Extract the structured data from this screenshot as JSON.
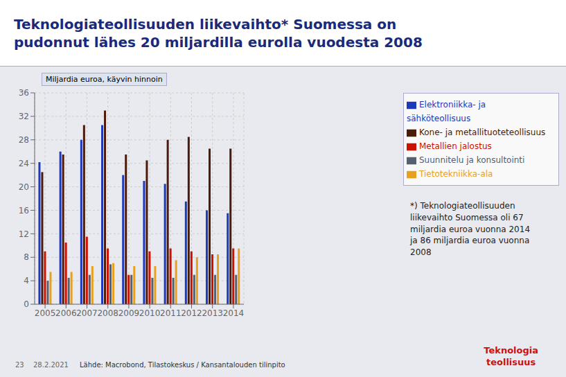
{
  "chart_data": {
    "type": "bar",
    "title": "Teknologiateollisuuden liikevaihto* Suomessa on\npudonnut lähes 20 miljardilla eurolla vuodesta 2008",
    "y_label": "Miljardia euroa, käyvin hinnoin",
    "categories": [
      "2005",
      "2006",
      "2007",
      "2008",
      "2009",
      "2010",
      "2011",
      "2012",
      "2013",
      "2014"
    ],
    "series": [
      {
        "name": "Elektroniikka- ja sähköteollisuus",
        "color": "#1c39bb",
        "values": [
          24.2,
          26.0,
          28.0,
          30.5,
          22.0,
          21.0,
          20.5,
          17.5,
          16.0,
          15.5
        ]
      },
      {
        "name": "Kone- ja metallituoteteollisuus",
        "color": "#4a1a0a",
        "values": [
          22.5,
          25.5,
          30.5,
          33.0,
          25.5,
          24.5,
          28.0,
          28.5,
          26.5,
          26.5
        ]
      },
      {
        "name": "Metallien jalostus",
        "color": "#cc1100",
        "values": [
          9.0,
          10.5,
          11.5,
          9.5,
          5.0,
          9.0,
          9.5,
          9.0,
          8.5,
          9.5
        ]
      },
      {
        "name": "Suunnitelu ja konsultointi",
        "color": "#556070",
        "values": [
          4.0,
          4.5,
          5.0,
          6.8,
          5.0,
          4.5,
          4.5,
          5.0,
          5.0,
          5.0
        ]
      },
      {
        "name": "Tietotekniikka-ala",
        "color": "#e8a020",
        "values": [
          5.5,
          5.5,
          6.5,
          7.0,
          6.5,
          6.5,
          7.5,
          8.0,
          8.5,
          9.5
        ]
      }
    ],
    "ylim": [
      0,
      36
    ],
    "yticks": [
      0,
      4,
      8,
      12,
      16,
      20,
      24,
      28,
      32,
      36
    ],
    "grid": true,
    "legend": "right",
    "annotations": [
      "*) Teknologiateollisuuden\nliikevaihto Suomessa oli 67\nmiljardia euroa vuonna 2014\nja 86 miljardia euroa vuonna\n2008",
      "Lähde: Macrobond, Tilastokeskus / Kansantalouden tilinpito",
      "23",
      "28.2.2021",
      "Teknologia\nteollisuus"
    ]
  }
}
